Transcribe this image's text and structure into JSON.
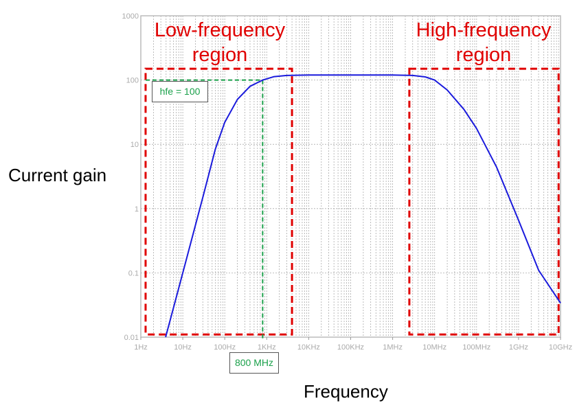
{
  "chart_data": {
    "type": "line",
    "title": "",
    "xlabel": "Frequency",
    "ylabel": "Current gain",
    "x_scale": "log",
    "y_scale": "log",
    "xlim": [
      1,
      10000000000
    ],
    "ylim": [
      0.01,
      1000
    ],
    "grid": true,
    "x_ticks": [
      {
        "value": 1,
        "label": "1Hz"
      },
      {
        "value": 10,
        "label": "10Hz"
      },
      {
        "value": 100,
        "label": "100Hz"
      },
      {
        "value": 1000,
        "label": "1KHz"
      },
      {
        "value": 10000,
        "label": "10KHz"
      },
      {
        "value": 100000,
        "label": "100KHz"
      },
      {
        "value": 1000000,
        "label": "1MHz"
      },
      {
        "value": 10000000,
        "label": "10MHz"
      },
      {
        "value": 100000000,
        "label": "100MHz"
      },
      {
        "value": 1000000000,
        "label": "1GHz"
      },
      {
        "value": 10000000000,
        "label": "10GHz"
      }
    ],
    "y_ticks": [
      {
        "value": 1000,
        "label": "1000"
      },
      {
        "value": 100,
        "label": "100"
      },
      {
        "value": 10,
        "label": "10"
      },
      {
        "value": 1,
        "label": "1"
      },
      {
        "value": 0.1,
        "label": "0.1"
      },
      {
        "value": 0.01,
        "label": "0.01"
      }
    ],
    "series": [
      {
        "color": "#1a1adc",
        "x": [
          3.9,
          10,
          30,
          60,
          100,
          200,
          400,
          800,
          1500,
          3000,
          10000,
          100000,
          1000000,
          3000000,
          6000000,
          10000000,
          20000000,
          50000000,
          100000000,
          300000000,
          1000000000,
          3000000000,
          10000000000
        ],
        "y": [
          0.01,
          0.1,
          1.5,
          8.5,
          22,
          50,
          80,
          100,
          113,
          118,
          120,
          120,
          120,
          118,
          112,
          100,
          70,
          35,
          17.6,
          4.4,
          0.66,
          0.11,
          0.034
        ]
      }
    ],
    "annotations": {
      "low_region": {
        "label_line1": "Low-frequency",
        "label_line2": "region",
        "x_range": [
          1.3,
          4000
        ],
        "y_range": [
          0.011,
          150
        ],
        "color": "#e00000"
      },
      "high_region": {
        "label_line1": "High-frequency",
        "label_line2": "region",
        "x_range": [
          2500000,
          9000000000
        ],
        "y_range": [
          0.011,
          150
        ],
        "color": "#e00000"
      },
      "hfe_marker": {
        "label": "hfe = 100",
        "gain": 100,
        "color": "#1aa04a"
      },
      "freq_marker": {
        "label": "800 MHz",
        "frequency": 800,
        "color": "#1aa04a"
      }
    }
  }
}
